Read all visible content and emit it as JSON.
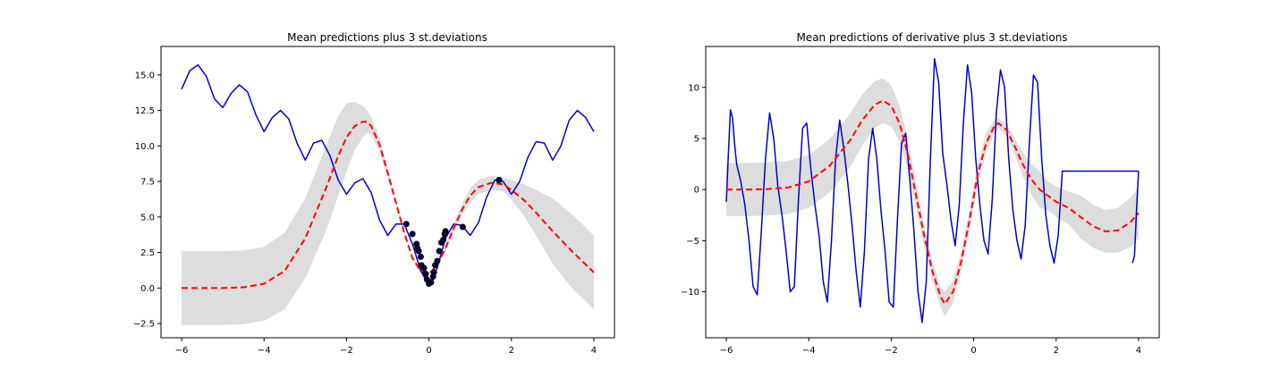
{
  "chart_data": [
    {
      "type": "line",
      "title": "Mean predictions plus 3 st.deviations",
      "xlabel": "",
      "ylabel": "",
      "xlim": [
        -6.5,
        4.5
      ],
      "ylim": [
        -3.5,
        17
      ],
      "xticks": [
        -6,
        -4,
        -2,
        0,
        2,
        4
      ],
      "yticks": [
        -2.5,
        0.0,
        2.5,
        5.0,
        7.5,
        10.0,
        12.5,
        15.0
      ],
      "xtick_labels": [
        "−6",
        "−4",
        "−2",
        "0",
        "2",
        "4"
      ],
      "ytick_labels": [
        "−2.5",
        "0.0",
        "2.5",
        "5.0",
        "7.5",
        "10.0",
        "12.5",
        "15.0"
      ],
      "grid": false,
      "series": [
        {
          "role": "true-function",
          "style": "solid",
          "color": "#0000cc",
          "x": [
            -6.0,
            -5.8,
            -5.6,
            -5.4,
            -5.2,
            -5.0,
            -4.8,
            -4.6,
            -4.4,
            -4.2,
            -4.0,
            -3.8,
            -3.6,
            -3.4,
            -3.2,
            -3.0,
            -2.8,
            -2.6,
            -2.4,
            -2.2,
            -2.0,
            -1.8,
            -1.6,
            -1.4,
            -1.2,
            -1.0,
            -0.8,
            -0.6,
            -0.4,
            -0.2,
            0.0,
            0.2,
            0.4,
            0.6,
            0.8,
            1.0,
            1.2,
            1.4,
            1.6,
            1.8,
            2.0,
            2.2,
            2.4,
            2.6,
            2.8,
            3.0,
            3.2,
            3.4,
            3.6,
            3.8,
            4.0
          ],
          "y": [
            14.0,
            15.3,
            15.7,
            14.9,
            13.3,
            12.7,
            13.7,
            14.3,
            13.8,
            12.2,
            11.0,
            12.0,
            12.5,
            11.9,
            10.2,
            9.0,
            10.2,
            10.4,
            9.3,
            7.6,
            6.6,
            7.4,
            7.7,
            6.7,
            4.8,
            3.7,
            4.5,
            4.5,
            3.1,
            1.2,
            0.2,
            1.4,
            3.5,
            4.5,
            4.4,
            3.7,
            4.6,
            6.4,
            7.6,
            7.5,
            6.6,
            7.5,
            9.2,
            10.3,
            10.2,
            9.0,
            10.0,
            11.8,
            12.5,
            12.0,
            11.0
          ]
        },
        {
          "role": "mean-prediction",
          "style": "dashed",
          "color": "#ff0000",
          "x": [
            -6.0,
            -5.5,
            -5.0,
            -4.5,
            -4.0,
            -3.5,
            -3.0,
            -2.5,
            -2.2,
            -2.0,
            -1.8,
            -1.6,
            -1.5,
            -1.4,
            -1.2,
            -1.0,
            -0.8,
            -0.6,
            -0.4,
            -0.2,
            0.0,
            0.2,
            0.4,
            0.6,
            0.8,
            1.0,
            1.2,
            1.5,
            1.8,
            2.0,
            2.3,
            2.6,
            3.0,
            3.5,
            4.0
          ],
          "y": [
            0.0,
            0.0,
            0.0,
            0.05,
            0.3,
            1.2,
            3.5,
            7.0,
            9.3,
            10.6,
            11.4,
            11.7,
            11.7,
            11.4,
            10.1,
            8.1,
            6.0,
            3.9,
            2.1,
            1.2,
            1.0,
            1.6,
            2.8,
            4.2,
            5.5,
            6.5,
            7.1,
            7.4,
            7.3,
            6.9,
            6.2,
            5.3,
            4.0,
            2.5,
            1.1
          ]
        }
      ],
      "band": {
        "color": "#dddddd",
        "x": [
          -6.0,
          -5.5,
          -5.0,
          -4.5,
          -4.0,
          -3.5,
          -3.0,
          -2.5,
          -2.2,
          -2.0,
          -1.8,
          -1.6,
          -1.5,
          -1.4,
          -1.2,
          -1.0,
          -0.8,
          -0.6,
          -0.4,
          -0.2,
          0.0,
          0.2,
          0.4,
          0.6,
          0.8,
          1.0,
          1.2,
          1.5,
          1.8,
          2.0,
          2.3,
          2.6,
          3.0,
          3.5,
          4.0
        ],
        "upper": [
          2.6,
          2.6,
          2.6,
          2.65,
          2.9,
          3.9,
          6.3,
          10.0,
          12.1,
          13.0,
          13.1,
          12.8,
          12.5,
          12.0,
          10.6,
          8.4,
          6.2,
          4.0,
          2.2,
          1.3,
          1.1,
          1.7,
          3.0,
          4.5,
          5.9,
          7.0,
          7.6,
          7.9,
          7.8,
          7.6,
          7.3,
          6.9,
          6.3,
          5.1,
          3.7
        ],
        "lower": [
          -2.6,
          -2.6,
          -2.6,
          -2.55,
          -2.3,
          -1.5,
          0.7,
          4.0,
          6.5,
          8.2,
          9.7,
          10.6,
          10.9,
          10.8,
          9.6,
          7.8,
          5.8,
          3.8,
          2.0,
          1.1,
          0.9,
          1.5,
          2.6,
          3.9,
          5.1,
          6.0,
          6.6,
          6.9,
          6.8,
          6.2,
          5.1,
          3.7,
          1.7,
          -0.1,
          -1.5
        ]
      },
      "points": {
        "color": "#000033",
        "x": [
          -0.55,
          -0.4,
          -0.3,
          -0.28,
          -0.25,
          -0.2,
          -0.18,
          -0.12,
          -0.08,
          -0.05,
          0.0,
          0.05,
          0.1,
          0.12,
          0.15,
          0.2,
          0.25,
          0.3,
          0.35,
          0.38,
          0.4,
          0.82,
          1.7
        ],
        "y": [
          4.5,
          3.8,
          3.1,
          2.8,
          2.6,
          2.2,
          1.6,
          1.4,
          1.0,
          0.6,
          0.3,
          0.4,
          0.8,
          1.1,
          1.6,
          1.9,
          2.6,
          3.2,
          3.4,
          3.8,
          4.0,
          4.3,
          7.6
        ]
      }
    },
    {
      "type": "line",
      "title": "Mean predictions of derivative plus 3 st.deviations",
      "xlabel": "",
      "ylabel": "",
      "xlim": [
        -6.5,
        4.5
      ],
      "ylim": [
        -14.5,
        14
      ],
      "xticks": [
        -6,
        -4,
        -2,
        0,
        2,
        4
      ],
      "yticks": [
        -10,
        -5,
        0,
        5,
        10
      ],
      "xtick_labels": [
        "−6",
        "−4",
        "−2",
        "0",
        "2",
        "4"
      ],
      "ytick_labels": [
        "−10",
        "−5",
        "0",
        "5",
        "10"
      ],
      "grid": false,
      "series": [
        {
          "role": "true-derivative",
          "style": "solid",
          "color": "#0000cc",
          "x": [
            -6.0,
            -5.95,
            -5.9,
            -5.85,
            -5.8,
            -5.75,
            -5.65,
            -5.55,
            -5.45,
            -5.35,
            -5.25,
            -5.15,
            -5.05,
            -4.95,
            -4.85,
            -4.75,
            -4.65,
            -4.55,
            -4.45,
            -4.35,
            -4.25,
            -4.15,
            -4.05,
            -3.95,
            -3.85,
            -3.75,
            -3.65,
            -3.55,
            -3.45,
            -3.35,
            -3.25,
            -3.15,
            -3.05,
            -2.95,
            -2.85,
            -2.75,
            -2.65,
            -2.55,
            -2.45,
            -2.35,
            -2.25,
            -2.15,
            -2.05,
            -1.95,
            -1.85,
            -1.75,
            -1.65,
            -1.55,
            -1.45,
            -1.35,
            -1.25,
            -1.15,
            -1.05,
            -0.95,
            -0.85,
            -0.75,
            -0.65,
            -0.55,
            -0.45,
            -0.35,
            -0.25,
            -0.15,
            -0.05,
            0.05,
            0.15,
            0.25,
            0.35,
            0.45,
            0.55,
            0.65,
            0.75,
            0.85,
            0.95,
            1.05,
            1.15,
            1.25,
            1.35,
            1.45,
            1.55,
            1.65,
            1.75,
            1.85,
            1.95,
            2.05,
            2.15,
            2.25,
            2.35,
            2.45,
            2.55,
            2.65,
            2.75,
            2.85,
            2.95,
            3.05,
            3.15,
            3.25,
            3.35,
            3.45,
            3.55,
            3.65,
            3.75,
            3.85,
            3.95,
            4.0
          ],
          "y": [
            -1.2,
            3.5,
            7.8,
            7.0,
            4.5,
            2.5,
            0.8,
            -1.5,
            -5.0,
            -9.5,
            -10.3,
            -4.0,
            3.0,
            7.5,
            5.0,
            0.3,
            -2.5,
            -6.0,
            -10.0,
            -9.5,
            -1.0,
            6.0,
            6.5,
            2.0,
            -1.5,
            -4.5,
            -9.0,
            -11.0,
            -5.0,
            3.0,
            6.8,
            4.0,
            0.5,
            -3.5,
            -8.0,
            -11.5,
            -6.0,
            3.0,
            6.0,
            3.0,
            -2.0,
            -6.0,
            -11.0,
            -11.5,
            -3.0,
            4.5,
            5.5,
            1.0,
            -4.0,
            -10.0,
            -13.0,
            -9.0,
            3.0,
            12.8,
            10.5,
            3.5,
            0.5,
            -3.0,
            -5.5,
            -1.5,
            6.5,
            12.2,
            9.5,
            3.0,
            -1.5,
            -5.0,
            -6.3,
            -1.0,
            7.5,
            11.7,
            10.0,
            3.0,
            -2.0,
            -5.0,
            -6.8,
            -3.5,
            4.5,
            11.2,
            10.5,
            3.0,
            -2.5,
            -5.5,
            -7.2,
            -4.5,
            1.8,
            1.8,
            1.8,
            1.8,
            1.8,
            1.8,
            1.8,
            1.8,
            1.8,
            1.8,
            1.8,
            1.8,
            1.8,
            1.8,
            1.8,
            1.8,
            1.8,
            1.8,
            1.8,
            1.8
          ]
        },
        {
          "role": "mean-derivative-prediction",
          "style": "dashed",
          "color": "#ff0000",
          "x": [
            -6.0,
            -5.5,
            -5.0,
            -4.5,
            -4.0,
            -3.5,
            -3.0,
            -2.7,
            -2.4,
            -2.2,
            -2.0,
            -1.8,
            -1.6,
            -1.4,
            -1.2,
            -1.0,
            -0.8,
            -0.7,
            -0.5,
            -0.3,
            -0.1,
            0.1,
            0.3,
            0.5,
            0.6,
            0.8,
            1.0,
            1.2,
            1.4,
            1.6,
            1.8,
            2.0,
            2.3,
            2.6,
            2.9,
            3.2,
            3.5,
            3.8,
            4.0
          ],
          "y": [
            0.0,
            0.0,
            0.05,
            0.2,
            0.8,
            2.3,
            4.8,
            6.8,
            8.3,
            8.7,
            8.2,
            6.5,
            3.5,
            -0.5,
            -4.5,
            -8.0,
            -10.5,
            -11.2,
            -10.0,
            -7.0,
            -3.0,
            1.5,
            4.5,
            6.2,
            6.5,
            5.8,
            4.2,
            2.4,
            1.0,
            0.0,
            -0.6,
            -1.2,
            -1.8,
            -2.7,
            -3.6,
            -4.1,
            -4.0,
            -3.2,
            -2.3
          ]
        },
        {
          "role": "true-derivative-tail",
          "style": "solid",
          "color": "#0000cc",
          "x": [
            3.85,
            3.9,
            3.95,
            4.0
          ],
          "y": [
            -7.2,
            -6.5,
            -2.0,
            1.8
          ]
        }
      ],
      "band": {
        "color": "#dddddd",
        "x": [
          -6.0,
          -5.5,
          -5.0,
          -4.5,
          -4.0,
          -3.5,
          -3.0,
          -2.7,
          -2.4,
          -2.2,
          -2.0,
          -1.8,
          -1.6,
          -1.4,
          -1.2,
          -1.0,
          -0.8,
          -0.7,
          -0.5,
          -0.3,
          -0.1,
          0.1,
          0.3,
          0.5,
          0.6,
          0.8,
          1.0,
          1.2,
          1.4,
          1.6,
          1.8,
          2.0,
          2.3,
          2.6,
          2.9,
          3.2,
          3.5,
          3.8,
          4.0
        ],
        "upper": [
          2.6,
          2.6,
          2.65,
          2.8,
          3.4,
          4.9,
          7.4,
          9.3,
          10.6,
          10.9,
          10.2,
          8.3,
          5.0,
          0.8,
          -3.4,
          -7.0,
          -9.5,
          -10.0,
          -8.9,
          -6.0,
          -2.0,
          2.5,
          5.5,
          6.9,
          7.0,
          6.4,
          5.0,
          3.6,
          2.5,
          1.8,
          0.8,
          0.3,
          -0.2,
          -0.6,
          -1.5,
          -2.0,
          -1.8,
          -0.8,
          0.2
        ],
        "lower": [
          -2.6,
          -2.6,
          -2.55,
          -2.4,
          -1.8,
          -0.3,
          2.2,
          4.3,
          6.0,
          6.5,
          6.2,
          4.7,
          2.0,
          -1.8,
          -5.6,
          -9.0,
          -11.5,
          -12.4,
          -11.1,
          -8.0,
          -4.0,
          0.5,
          3.5,
          5.5,
          6.0,
          5.2,
          3.4,
          1.2,
          -0.5,
          -1.8,
          -2.0,
          -2.7,
          -3.4,
          -4.8,
          -5.7,
          -6.2,
          -6.2,
          -5.6,
          -4.8
        ]
      }
    }
  ]
}
